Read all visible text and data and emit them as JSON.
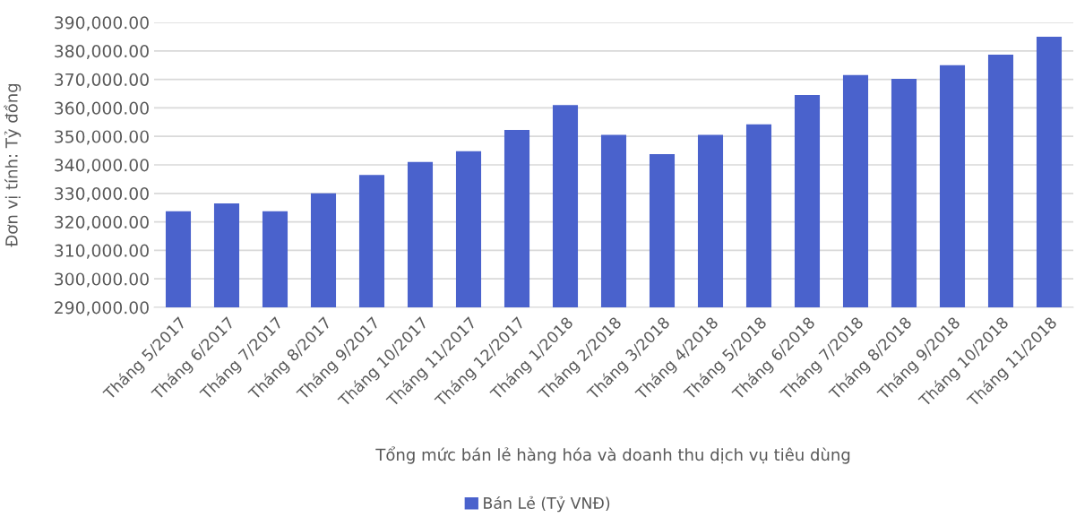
{
  "chart_data": {
    "type": "bar",
    "xlabel": "Tổng mức bán lẻ hàng hóa và doanh thu dịch vụ tiêu dùng",
    "ylabel": "Đơn vị tính: Tỷ đồng",
    "categories": [
      "Tháng 5/2017",
      "Tháng 6/2017",
      "Tháng 7/2017",
      "Tháng 8/2017",
      "Tháng 9/2017",
      "Tháng 10/2017",
      "Tháng 11/2017",
      "Tháng 12/2017",
      "Tháng 1/2018",
      "Tháng 2/2018",
      "Tháng 3/2018",
      "Tháng 4/2018",
      "Tháng 5/2018",
      "Tháng 6/2018",
      "Tháng 7/2018",
      "Tháng 8/2018",
      "Tháng 9/2018",
      "Tháng 10/2018",
      "Tháng 11/2018"
    ],
    "series": [
      {
        "name": "Bán Lẻ (Tỷ VNĐ)",
        "color": "#4a62cc",
        "values": [
          323700,
          326500,
          323700,
          330000,
          336500,
          341000,
          344800,
          352300,
          361000,
          350500,
          343800,
          350500,
          354200,
          364500,
          371500,
          370200,
          375000,
          378700,
          385000
        ]
      }
    ],
    "ylim": [
      290000,
      390000
    ],
    "yticks": [
      {
        "value": 290000,
        "label": "290,000.00"
      },
      {
        "value": 300000,
        "label": "300,000.00"
      },
      {
        "value": 310000,
        "label": "310,000.00"
      },
      {
        "value": 320000,
        "label": "320,000.00"
      },
      {
        "value": 330000,
        "label": "330,000.00"
      },
      {
        "value": 340000,
        "label": "340,000.00"
      },
      {
        "value": 350000,
        "label": "350,000.00"
      },
      {
        "value": 360000,
        "label": "360,000.00"
      },
      {
        "value": 370000,
        "label": "370,000.00"
      },
      {
        "value": 380000,
        "label": "380,000.00"
      },
      {
        "value": 390000,
        "label": "390,000.00"
      }
    ],
    "grid": "y",
    "legend": "bottom"
  }
}
